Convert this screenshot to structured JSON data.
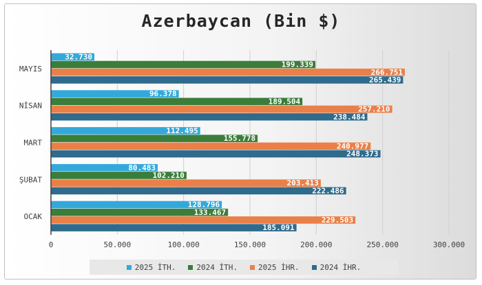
{
  "chart_data": {
    "type": "bar",
    "orientation": "horizontal",
    "title": "Azerbaycan (Bin $)",
    "categories": [
      "MAYIS",
      "NİSAN",
      "MART",
      "ŞUBAT",
      "OCAK"
    ],
    "series": [
      {
        "name": "2025 İTH.",
        "color": "#33a9db",
        "values": [
          32730,
          96378,
          112495,
          80483,
          128796
        ],
        "labels": [
          "32.730",
          "96.378",
          "112.495",
          "80.483",
          "128.796"
        ]
      },
      {
        "name": "2024 İTH.",
        "color": "#3b7d3a",
        "values": [
          199339,
          189504,
          155778,
          102210,
          133467
        ],
        "labels": [
          "199.339",
          "189.504",
          "155.778",
          "102.210",
          "133.467"
        ]
      },
      {
        "name": "2025 İHR.",
        "color": "#ea8048",
        "values": [
          266751,
          257210,
          240977,
          203413,
          229503
        ],
        "labels": [
          "266.751",
          "257.210",
          "240.977",
          "203.413",
          "229.503"
        ]
      },
      {
        "name": "2024 İHR.",
        "color": "#2f6b8c",
        "values": [
          265439,
          238484,
          248373,
          222486,
          185091
        ],
        "labels": [
          "265.439",
          "238.484",
          "248.373",
          "222.486",
          "185.091"
        ]
      }
    ],
    "xlim": [
      0,
      300000
    ],
    "xticks": [
      "0",
      "50.000",
      "100.000",
      "150.000",
      "200.000",
      "250.000",
      "300.000"
    ],
    "grid": true,
    "legend_position": "bottom"
  }
}
